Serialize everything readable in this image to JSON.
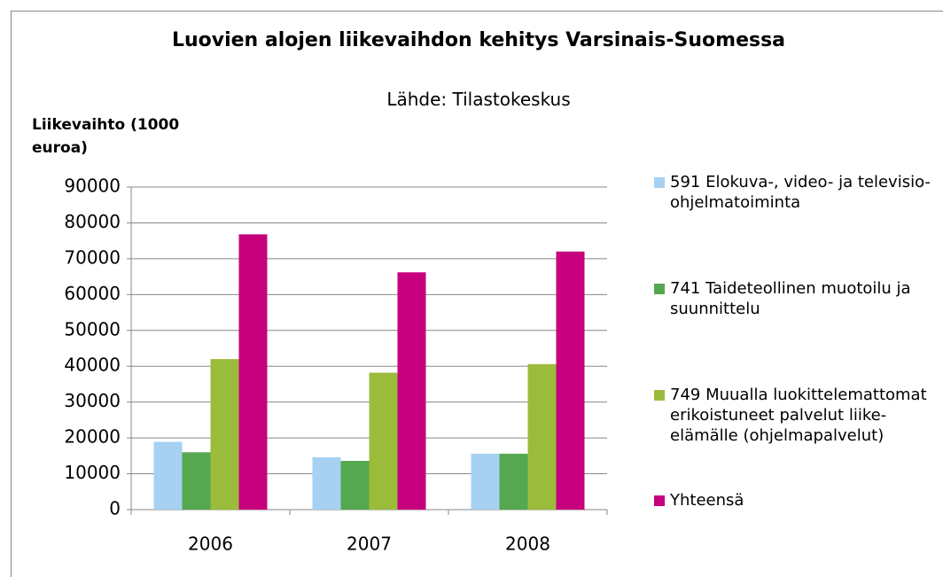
{
  "chart_data": {
    "type": "bar",
    "title": "Luovien alojen liikevaihdon kehitys Varsinais-Suomessa",
    "subtitle": "Lähde: Tilastokeskus",
    "y_label": "Liikevaihto (1000 euroa)",
    "categories": [
      "2006",
      "2007",
      "2008"
    ],
    "series": [
      {
        "name": "591 Elokuva-, video- ja televisio-ohjelmatoiminta",
        "color": "#a6d1f2",
        "values": [
          18900,
          14600,
          15600
        ]
      },
      {
        "name": "741 Taideteollinen muotoilu ja suunnittelu",
        "color": "#55a84f",
        "values": [
          16000,
          13600,
          15600
        ]
      },
      {
        "name": "749 Muualla luokittelemattomat erikoistuneet palvelut liike-elämälle (ohjelmapalvelut)",
        "color": "#9bbb3b",
        "values": [
          42000,
          38200,
          40600
        ]
      },
      {
        "name": "Yhteensä",
        "color": "#c7007d",
        "values": [
          76800,
          66200,
          72000
        ]
      }
    ],
    "ylim": [
      0,
      90000
    ],
    "yticks": [
      0,
      10000,
      20000,
      30000,
      40000,
      50000,
      60000,
      70000,
      80000,
      90000
    ],
    "grid": true,
    "legend": "right"
  }
}
